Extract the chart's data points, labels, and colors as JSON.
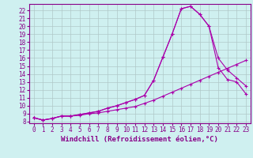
{
  "title": "",
  "xlabel": "Windchill (Refroidissement éolien,°C)",
  "ylabel": "",
  "bg_color": "#cff0f0",
  "line_color": "#aa00aa",
  "grid_color": "#b0c8c8",
  "xlim": [
    -0.5,
    23.5
  ],
  "ylim": [
    7.8,
    22.8
  ],
  "xticks": [
    0,
    1,
    2,
    3,
    4,
    5,
    6,
    7,
    8,
    9,
    10,
    11,
    12,
    13,
    14,
    15,
    16,
    17,
    18,
    19,
    20,
    21,
    22,
    23
  ],
  "yticks": [
    8,
    9,
    10,
    11,
    12,
    13,
    14,
    15,
    16,
    17,
    18,
    19,
    20,
    21,
    22
  ],
  "line1_x": [
    0,
    1,
    2,
    3,
    4,
    5,
    6,
    7,
    8,
    9,
    10,
    11,
    12,
    13,
    14,
    15,
    16,
    17,
    18,
    19,
    20,
    21,
    22,
    23
  ],
  "line1_y": [
    8.5,
    8.2,
    8.4,
    8.7,
    8.7,
    8.8,
    9.0,
    9.1,
    9.3,
    9.5,
    9.7,
    9.9,
    10.3,
    10.7,
    11.2,
    11.7,
    12.2,
    12.7,
    13.2,
    13.7,
    14.2,
    14.7,
    15.2,
    15.7
  ],
  "line2_x": [
    0,
    1,
    2,
    3,
    4,
    5,
    6,
    7,
    8,
    9,
    10,
    11,
    12,
    13,
    14,
    15,
    16,
    17,
    18,
    19,
    20,
    21,
    22,
    23
  ],
  "line2_y": [
    8.5,
    8.2,
    8.4,
    8.7,
    8.7,
    8.9,
    9.1,
    9.3,
    9.7,
    10.0,
    10.4,
    10.8,
    11.3,
    13.2,
    16.1,
    19.0,
    22.2,
    22.5,
    21.5,
    20.0,
    16.0,
    14.5,
    13.5,
    12.5
  ],
  "line3_x": [
    0,
    1,
    2,
    3,
    4,
    5,
    6,
    7,
    8,
    9,
    10,
    11,
    12,
    13,
    14,
    15,
    16,
    17,
    18,
    19,
    20,
    21,
    22,
    23
  ],
  "line3_y": [
    8.5,
    8.2,
    8.4,
    8.7,
    8.7,
    8.9,
    9.1,
    9.3,
    9.7,
    10.0,
    10.4,
    10.8,
    11.3,
    13.2,
    16.1,
    19.0,
    22.2,
    22.5,
    21.5,
    20.0,
    14.8,
    13.3,
    13.0,
    11.5
  ],
  "marker": "+",
  "markersize": 3,
  "linewidth": 0.8,
  "tick_fontsize": 5.5,
  "xlabel_fontsize": 6.5,
  "label_color": "#880088"
}
